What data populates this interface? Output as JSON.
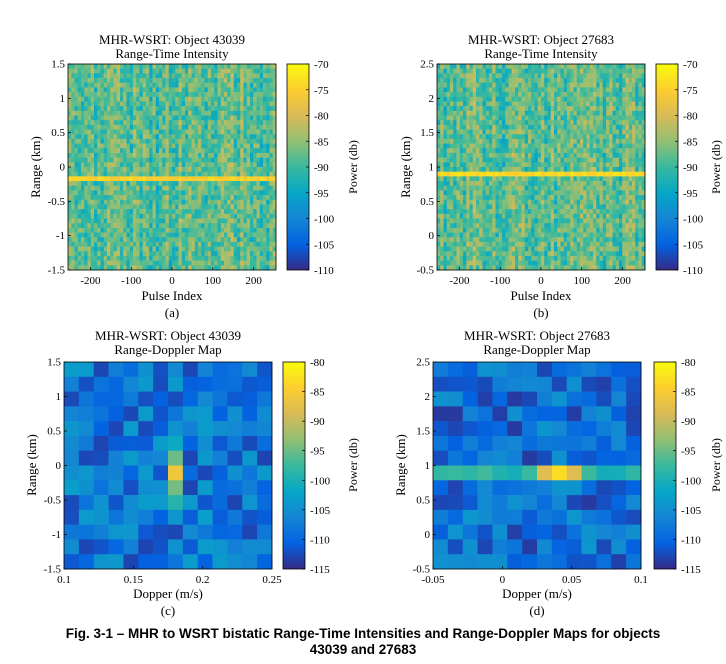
{
  "figure": {
    "caption_line1": "Fig. 3-1 – MHR to WSRT bistatic Range-Time Intensities and Range-Doppler Maps for objects",
    "caption_line2": "43039 and 27683"
  },
  "chart_data": [
    {
      "id": "a",
      "type": "heatmap",
      "title": "MHR-WSRT: Object 43039",
      "subtitle": "Range-Time Intensity",
      "xlabel": "Pulse Index",
      "ylabel": "Range (km)",
      "colorbar_label": "Power (db)",
      "panel_label": "(a)",
      "xlim": [
        -255,
        255
      ],
      "ylim": [
        -1.5,
        1.5
      ],
      "xticks": [
        "-200",
        "-100",
        "0",
        "100",
        "200"
      ],
      "xtick_values": [
        -200,
        -100,
        0,
        100,
        200
      ],
      "yticks": [
        "1.5",
        "1",
        "0.5",
        "0",
        "-0.5",
        "-1",
        "-1.5"
      ],
      "ytick_values": [
        1.5,
        1,
        0.5,
        0,
        -0.5,
        -1,
        -1.5
      ],
      "clim": [
        -110,
        -70
      ],
      "cticks": [
        "-70",
        "-75",
        "-80",
        "-85",
        "-90",
        "-95",
        "-100",
        "-105",
        "-110"
      ],
      "noise_level_db": -88,
      "target_range_km": -0.15,
      "target_power_db": -75
    },
    {
      "id": "b",
      "type": "heatmap",
      "title": "MHR-WSRT: Object 27683",
      "subtitle": "Range-Time Intensity",
      "xlabel": "Pulse Index",
      "ylabel": "Range (km)",
      "colorbar_label": "Power (db)",
      "panel_label": "(b)",
      "xlim": [
        -255,
        255
      ],
      "ylim": [
        -0.5,
        2.5
      ],
      "xticks": [
        "-200",
        "-100",
        "0",
        "100",
        "200"
      ],
      "xtick_values": [
        -200,
        -100,
        0,
        100,
        200
      ],
      "yticks": [
        "2.5",
        "2",
        "1.5",
        "1",
        "0.5",
        "0",
        "-0.5"
      ],
      "ytick_values": [
        2.5,
        2,
        1.5,
        1,
        0.5,
        0,
        -0.5
      ],
      "clim": [
        -110,
        -70
      ],
      "cticks": [
        "-70",
        "-75",
        "-80",
        "-85",
        "-90",
        "-95",
        "-100",
        "-105",
        "-110"
      ],
      "noise_level_db": -88,
      "target_range_km": 0.88,
      "target_power_db": -74
    },
    {
      "id": "c",
      "type": "heatmap",
      "title": "MHR-WSRT: Object 43039",
      "subtitle": "Range-Doppler Map",
      "xlabel": "Dopper (m/s)",
      "ylabel": "Range (km)",
      "colorbar_label": "Power (db)",
      "panel_label": "(c)",
      "xlim": [
        0.1,
        0.25
      ],
      "ylim": [
        -1.5,
        1.5
      ],
      "xticks": [
        "0.1",
        "0.15",
        "0.2",
        "0.25"
      ],
      "xtick_values": [
        0.1,
        0.15,
        0.2,
        0.25
      ],
      "yticks": [
        "1.5",
        "1",
        "0.5",
        "0",
        "-0.5",
        "-1",
        "-1.5"
      ],
      "ytick_values": [
        1.5,
        1,
        0.5,
        0,
        -0.5,
        -1,
        -1.5
      ],
      "clim": [
        -115,
        -80
      ],
      "cticks": [
        "-80",
        "-85",
        "-90",
        "-95",
        "-100",
        "-105",
        "-110",
        "-115"
      ],
      "noise_level_db": -108,
      "peak_doppler": 0.185,
      "peak_range_km": -0.15,
      "peak_power_db": -86
    },
    {
      "id": "d",
      "type": "heatmap",
      "title": "MHR-WSRT: Object 27683",
      "subtitle": "Range-Doppler Map",
      "xlabel": "Dopper (m/s)",
      "ylabel": "Range (km)",
      "colorbar_label": "Power (db)",
      "panel_label": "(d)",
      "xlim": [
        -0.05,
        0.1
      ],
      "ylim": [
        -0.5,
        2.5
      ],
      "xticks": [
        "-0.05",
        "0",
        "0.05",
        "0.1"
      ],
      "xtick_values": [
        -0.05,
        0,
        0.05,
        0.1
      ],
      "yticks": [
        "2.5",
        "2",
        "1.5",
        "1",
        "0.5",
        "0",
        "-0.5"
      ],
      "ytick_values": [
        2.5,
        2,
        1.5,
        1,
        0.5,
        0,
        -0.5
      ],
      "clim": [
        -115,
        -80
      ],
      "cticks": [
        "-80",
        "-85",
        "-90",
        "-95",
        "-100",
        "-105",
        "-110",
        "-115"
      ],
      "noise_level_db": -109,
      "peak_doppler": 0.045,
      "peak_range_km": 0.9,
      "peak_power_db": -83
    }
  ]
}
